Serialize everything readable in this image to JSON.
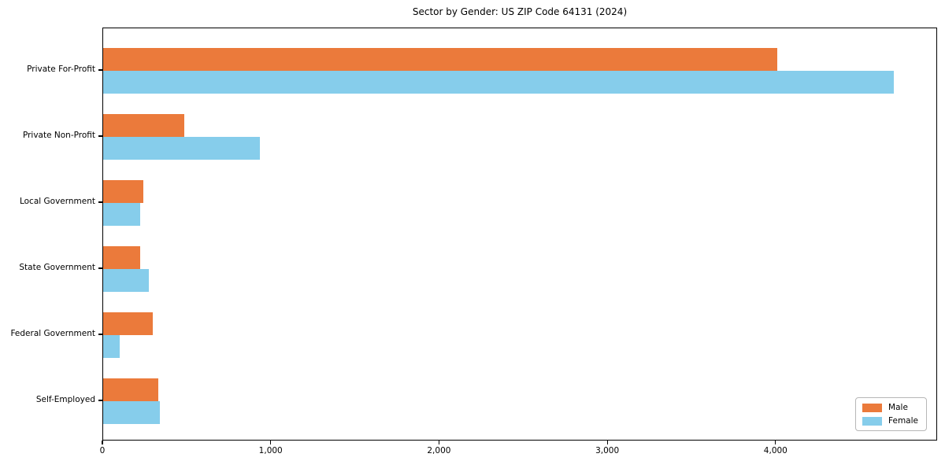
{
  "title": "Sector by Gender: US ZIP Code 64131 (2024)",
  "chart_data": {
    "type": "bar",
    "orientation": "horizontal",
    "title": "Sector by Gender: US ZIP Code 64131 (2024)",
    "xlabel": "",
    "ylabel": "",
    "categories": [
      "Private For-Profit",
      "Private Non-Profit",
      "Local Government",
      "State Government",
      "Federal Government",
      "Self-Employed"
    ],
    "series": [
      {
        "name": "Male",
        "color": "#EB7A3B",
        "values": [
          4005,
          480,
          240,
          220,
          295,
          325
        ]
      },
      {
        "name": "Female",
        "color": "#86CDEB",
        "values": [
          4700,
          930,
          220,
          270,
          100,
          335
        ]
      }
    ],
    "xlim": [
      0,
      4960
    ],
    "xticks": [
      0,
      1000,
      2000,
      3000,
      4000
    ],
    "xtick_labels": [
      "0",
      "1,000",
      "2,000",
      "3,000",
      "4,000"
    ],
    "grid": false,
    "legend_position": "lower right",
    "frame": "full-box"
  }
}
